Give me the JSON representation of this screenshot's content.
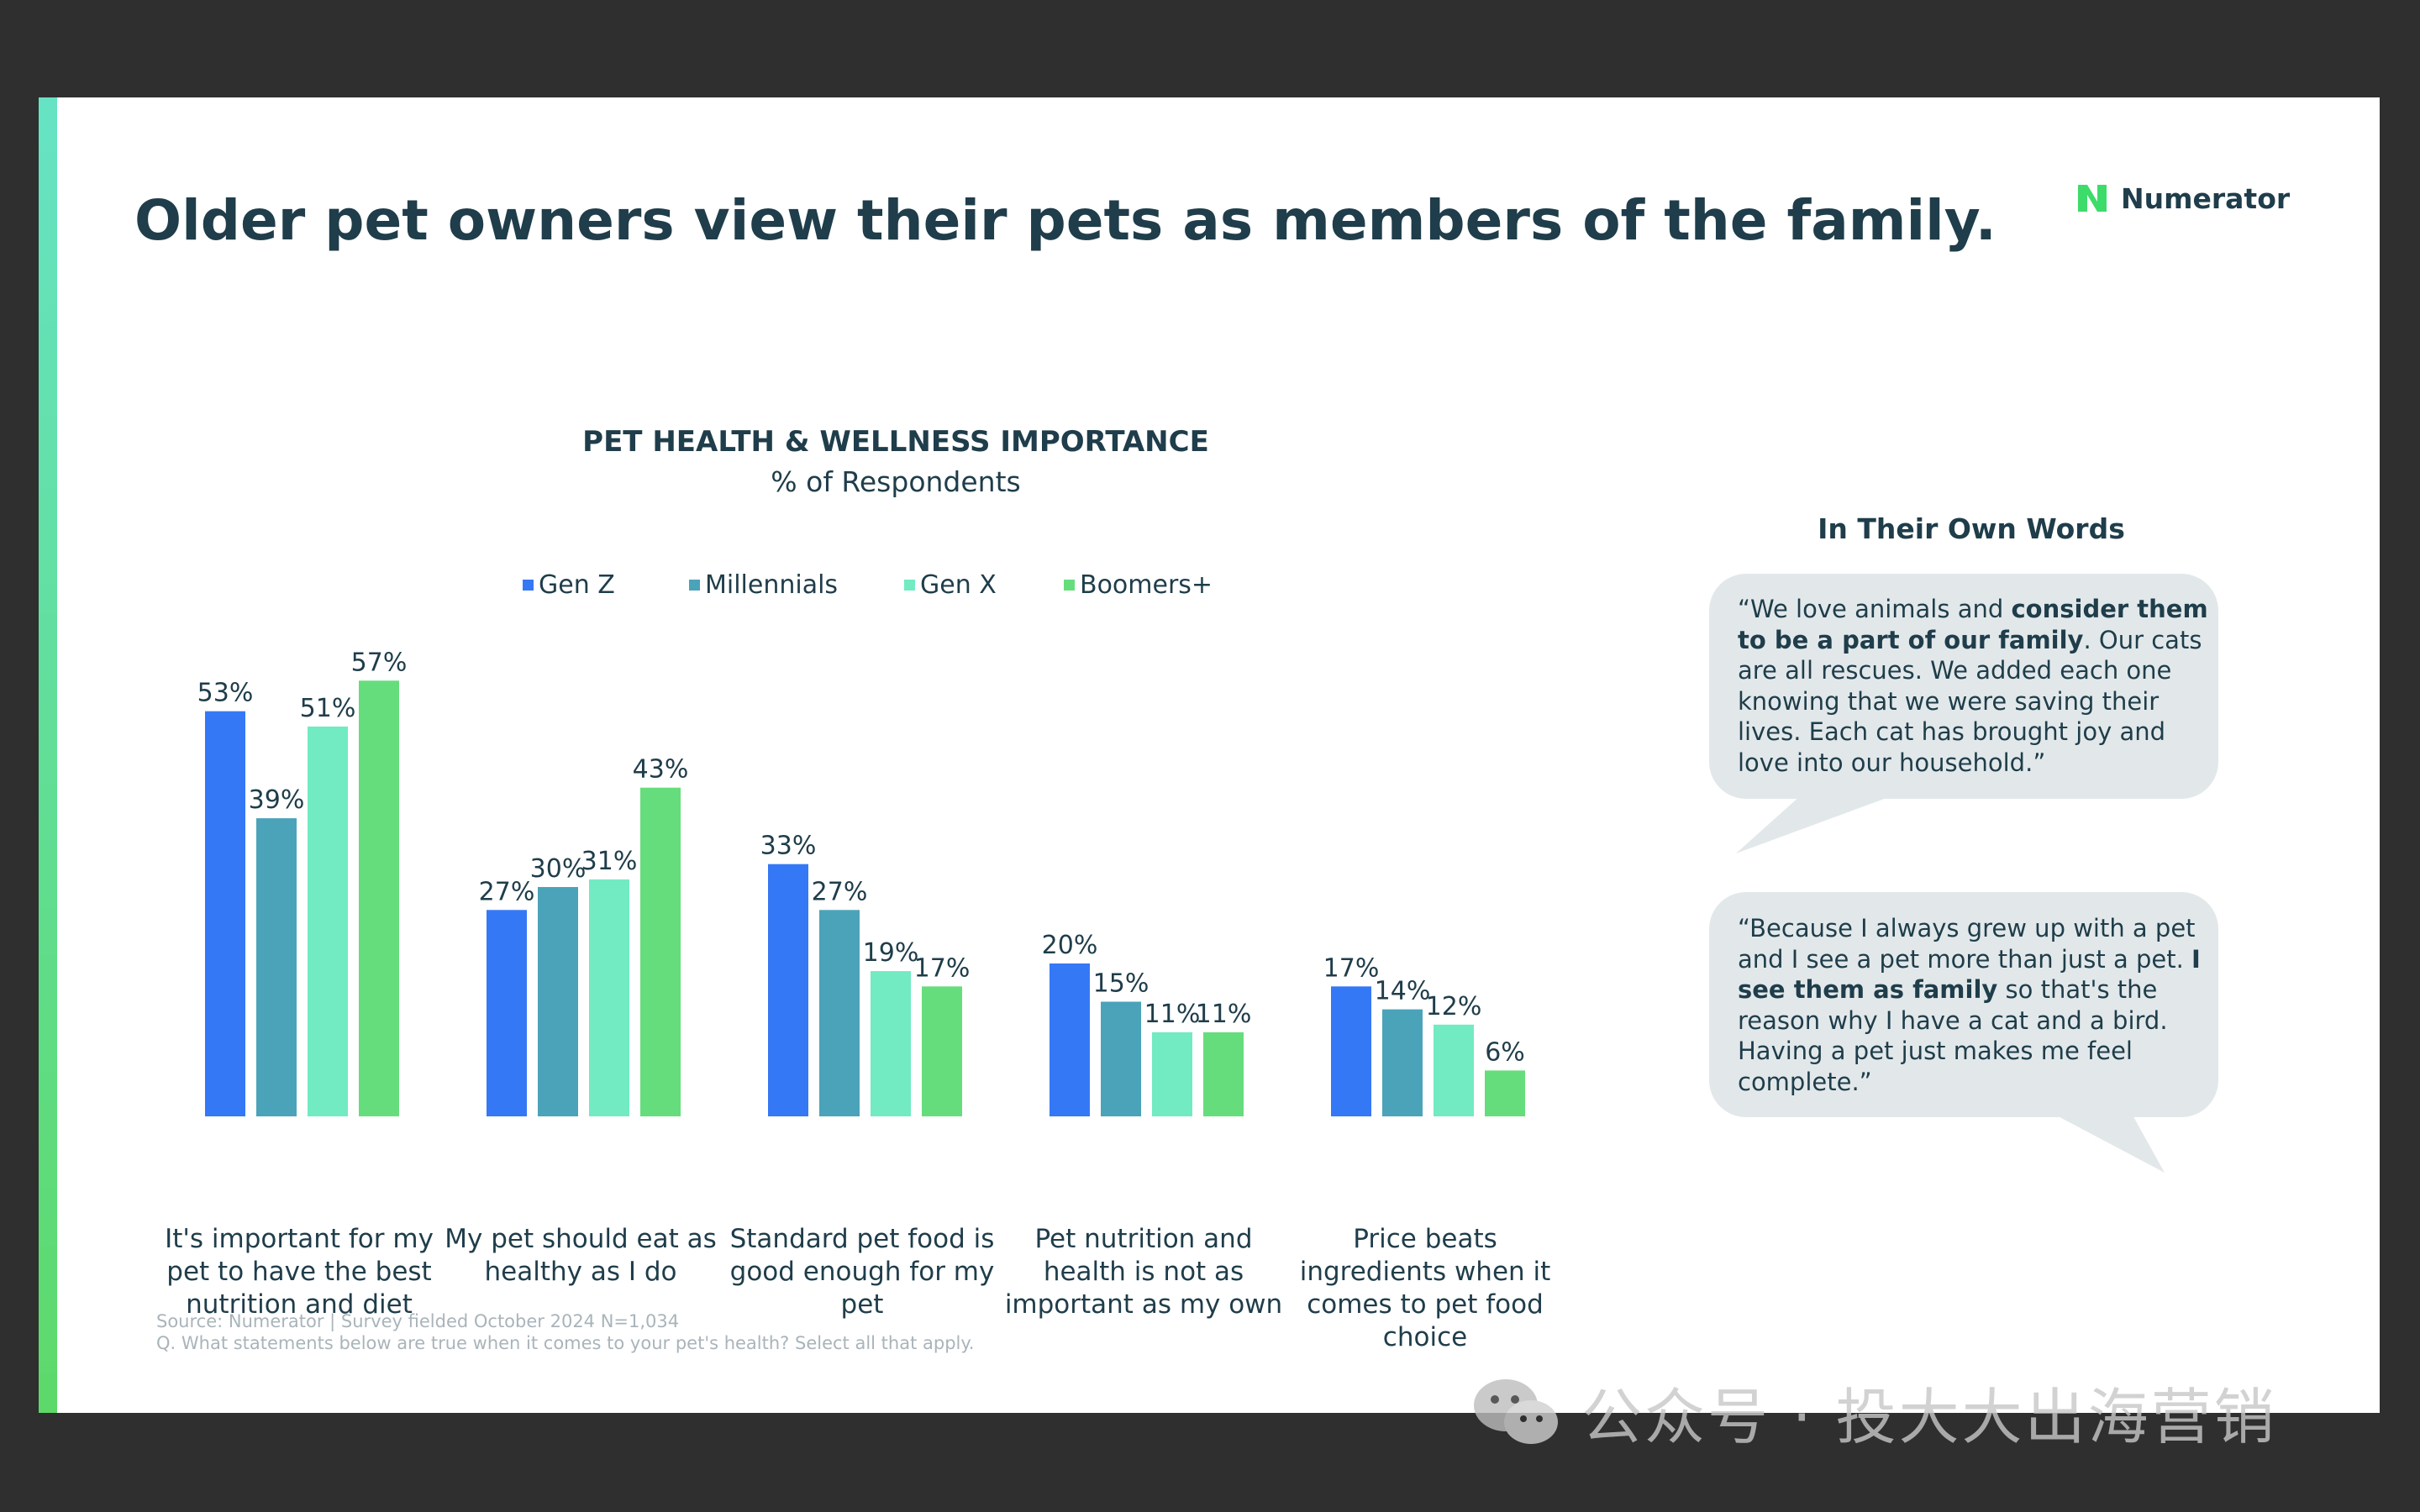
{
  "slide": {
    "title": "Older pet owners view their pets as members of the family.",
    "brand": "Numerator",
    "source_line1": "Source: Numerator | Survey fielded October 2024 N=1,034",
    "source_line2": "Q. What statements below are true when it comes to your pet's health? Select all that apply."
  },
  "colors": {
    "background": "#2f2f2f",
    "title": "#1f3d4a",
    "accent_top": "#66e3c4",
    "accent_bottom": "#5dd96a",
    "bubble": "#e2e8ea",
    "logo_green": "#3ddc6a"
  },
  "chart_data": {
    "type": "bar",
    "title": "PET HEALTH & WELLNESS IMPORTANCE",
    "subtitle": "% of Respondents",
    "categories": [
      "It's important for my pet to have the best nutrition and diet",
      "My pet should eat as healthy as I do",
      "Standard pet food is good enough for my pet",
      "Pet nutrition and health is not as important as my own",
      "Price beats ingredients when it comes to pet food choice"
    ],
    "series": [
      {
        "name": "Gen Z",
        "color": "#3478f6",
        "values": [
          53,
          27,
          33,
          20,
          17
        ]
      },
      {
        "name": "Millennials",
        "color": "#4aa3b9",
        "values": [
          39,
          30,
          27,
          15,
          14
        ]
      },
      {
        "name": "Gen X",
        "color": "#72eac2",
        "values": [
          51,
          31,
          19,
          11,
          12
        ]
      },
      {
        "name": "Boomers+",
        "color": "#66dd7c",
        "values": [
          57,
          43,
          17,
          11,
          6
        ]
      }
    ],
    "value_suffix": "%",
    "ylim": [
      0,
      60
    ],
    "grid": false,
    "legend_position": "top",
    "data_labels": true
  },
  "quotes": {
    "title": "In Their Own Words",
    "items": [
      {
        "segments": [
          {
            "text": "“We love animals and ",
            "bold": false
          },
          {
            "text": "consider them to be a part of our family",
            "bold": true
          },
          {
            "text": ". Our cats are all rescues. We added each one knowing that we were saving their lives. Each cat has brought joy and love into our household.”",
            "bold": false
          }
        ]
      },
      {
        "segments": [
          {
            "text": "“Because I always grew up with a pet and I see a pet more than just a pet. ",
            "bold": false
          },
          {
            "text": "I see them as family",
            "bold": true
          },
          {
            "text": " so that's the reason why I have a cat and a bird. Having a pet just makes me feel complete.”",
            "bold": false
          }
        ]
      }
    ]
  },
  "watermark": {
    "text": "公众号 · 投大大出海营销",
    "icon": "wechat-icon"
  }
}
